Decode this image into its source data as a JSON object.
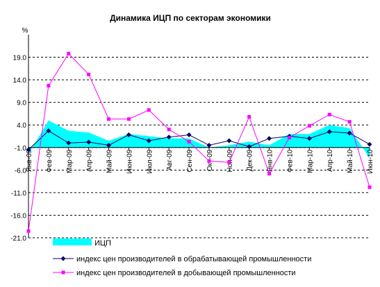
{
  "chart_data": {
    "type": "line",
    "title": "Динамика ИЦП по секторам экономики",
    "ylabel": "%",
    "xlabel": "",
    "ylim": [
      -21.0,
      24.0
    ],
    "yticks": [
      "19.0",
      "14.0",
      "9.0",
      "4.0",
      "-1.0",
      "-6.0",
      "-11.0",
      "-16.0",
      "-21.0"
    ],
    "grid": "horizontal-dashed",
    "legend_position": "bottom",
    "categories": [
      "Янв-09",
      "Фев-09",
      "Мар-09",
      "Апр-09",
      "Май-09",
      "Июн-09",
      "Июл-09",
      "Авг-09",
      "Сен-09",
      "Окт-09",
      "Ноя-09",
      "Дек-09",
      "Янв-10",
      "Фев-10",
      "Мар-10",
      "Апр-10",
      "Май-10",
      "Июн-10"
    ],
    "series": [
      {
        "name": "ИЦП",
        "kind": "area",
        "color": "#00ffff",
        "values": [
          -2.5,
          5.0,
          2.7,
          2.3,
          0.5,
          2.0,
          1.5,
          1.0,
          1.0,
          -1.0,
          -0.5,
          0.3,
          -0.5,
          2.0,
          2.0,
          4.0,
          3.3,
          -3.3
        ]
      },
      {
        "name": "индекс цен производителей в обрабатывающей промышленности",
        "kind": "line",
        "color": "#000066",
        "marker": "diamond",
        "values": [
          -1.5,
          2.7,
          0.0,
          0.2,
          -0.5,
          1.8,
          0.5,
          1.3,
          1.8,
          -0.5,
          0.5,
          -0.8,
          1.0,
          1.5,
          1.0,
          2.5,
          2.2,
          -0.3
        ]
      },
      {
        "name": "индекс цен производителей в добывающей промышленности",
        "kind": "line",
        "color": "#ff00ff",
        "marker": "square",
        "values": [
          -19.5,
          12.7,
          19.8,
          15.2,
          5.3,
          5.3,
          7.3,
          3.0,
          0.3,
          -4.0,
          -4.3,
          5.8,
          -6.8,
          1.2,
          3.8,
          6.3,
          4.7,
          -9.8
        ]
      }
    ]
  }
}
